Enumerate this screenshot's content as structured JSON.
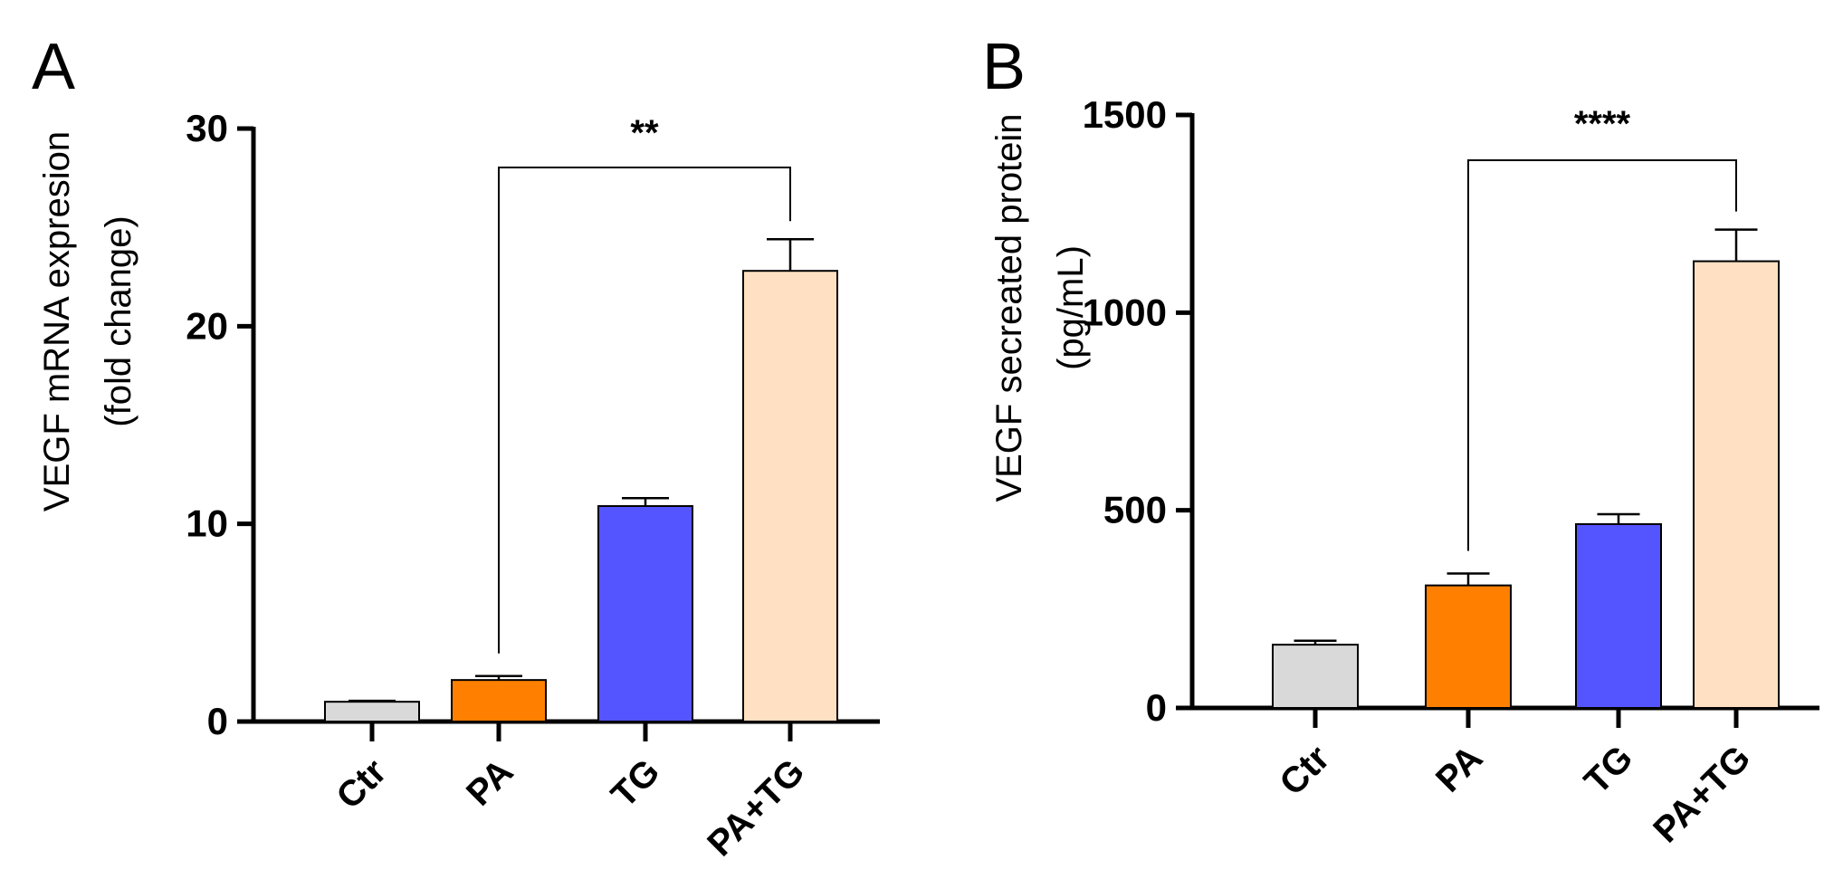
{
  "colors": {
    "Ctr": "#d9d9d9",
    "PA": "#ff8000",
    "TG": "#5555ff",
    "PA+TG": "#ffe0c2"
  },
  "chart_data": [
    {
      "panel": "A",
      "type": "bar",
      "categories": [
        "Ctr",
        "PA",
        "TG",
        "PA+TG"
      ],
      "values": [
        1.0,
        2.1,
        10.9,
        22.8
      ],
      "errors": [
        0.05,
        0.2,
        0.4,
        1.6
      ],
      "ylabel_line1": "VEGF mRNA expresion",
      "ylabel_line2": "(fold change)",
      "ylim": [
        0,
        30
      ],
      "yticks": [
        0,
        10,
        20,
        30
      ],
      "significance": {
        "from": "PA",
        "to": "PA+TG",
        "label": "**"
      },
      "grid": false
    },
    {
      "panel": "B",
      "type": "bar",
      "categories": [
        "Ctr",
        "PA",
        "TG",
        "PA+TG"
      ],
      "values": [
        160,
        310,
        465,
        1130
      ],
      "errors": [
        10,
        30,
        25,
        80
      ],
      "ylabel_line1": "VEGF secreated protein",
      "ylabel_line2": "(pg/mL)",
      "ylim": [
        0,
        1500
      ],
      "yticks": [
        0,
        500,
        1000,
        1500
      ],
      "significance": {
        "from": "PA",
        "to": "PA+TG",
        "label": "****"
      },
      "grid": false
    }
  ]
}
